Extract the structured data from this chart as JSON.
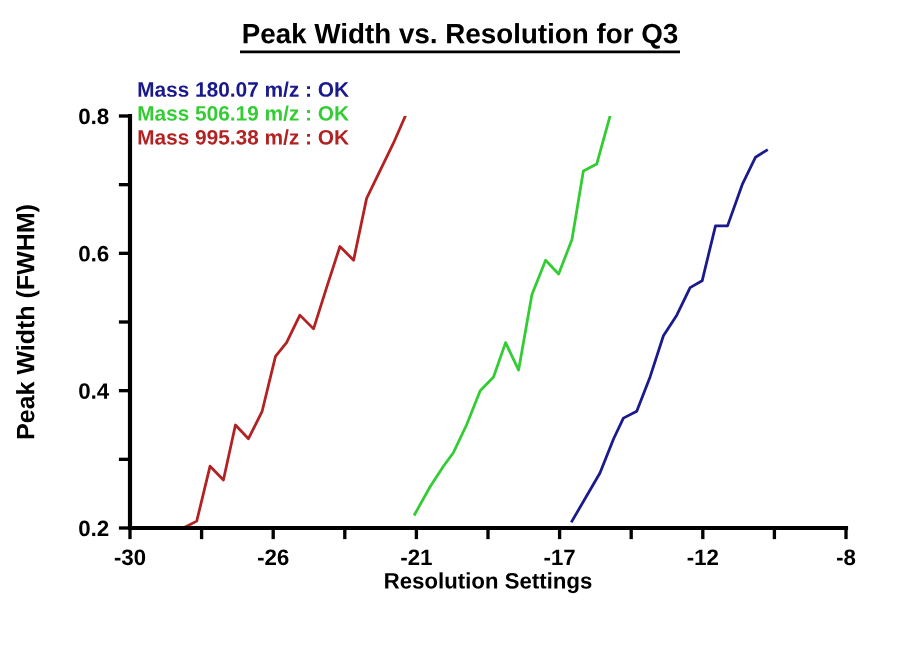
{
  "chart_data": {
    "type": "line",
    "title": "Peak Width vs. Resolution for Q3",
    "xlabel": "Resolution Settings",
    "ylabel": "Peak Width (FWHM)",
    "xlim": [
      -30,
      -8
    ],
    "xticks": [
      -30,
      {
        "value": -27.8,
        "label": null
      },
      {
        "value": -25.6,
        "label": "-26"
      },
      {
        "value": -23.4,
        "label": null
      },
      {
        "value": -21.2,
        "label": "-21"
      },
      {
        "value": -19,
        "label": null
      },
      {
        "value": -16.8,
        "label": "-17"
      },
      {
        "value": -14.6,
        "label": null
      },
      {
        "value": -12.4,
        "label": "-12"
      },
      {
        "value": -10.2,
        "label": null
      },
      -8
    ],
    "ylim": [
      0.2,
      0.8
    ],
    "yticks": [
      0.2,
      {
        "value": 0.3,
        "label": null
      },
      0.4,
      {
        "value": 0.5,
        "label": null
      },
      0.6,
      {
        "value": 0.7,
        "label": null
      },
      0.8
    ],
    "grid": false,
    "legend": "top left",
    "marker": "none",
    "line_style": "solid",
    "series": [
      {
        "name": "Mass 180.07 m/z : OK",
        "color": "#1a1a8c",
        "x": [
          -16.42,
          -15.56,
          -15.14,
          -14.84,
          -14.43,
          -14.02,
          -13.61,
          -13.2,
          -12.79,
          -12.42,
          -12.01,
          -11.64,
          -11.19,
          -10.78,
          -10.44
        ],
        "values": [
          0.21,
          0.28,
          0.33,
          0.36,
          0.37,
          0.42,
          0.48,
          0.51,
          0.55,
          0.56,
          0.64,
          0.64,
          0.7,
          0.74,
          0.75
        ]
      },
      {
        "name": "Mass 506.19 m/z : OK",
        "color": "#33cc33",
        "x": [
          -21.25,
          -20.78,
          -20.37,
          -20.06,
          -19.66,
          -19.24,
          -18.83,
          -18.46,
          -18.06,
          -17.65,
          -17.23,
          -16.83,
          -16.42,
          -16.07,
          -15.66,
          -15.25
        ],
        "values": [
          0.22,
          0.26,
          0.29,
          0.31,
          0.35,
          0.4,
          0.42,
          0.47,
          0.43,
          0.54,
          0.59,
          0.57,
          0.62,
          0.72,
          0.73,
          0.8
        ]
      },
      {
        "name": "Mass 995.38 m/z : OK",
        "color": "#b22222",
        "x": [
          -28.36,
          -27.95,
          -27.54,
          -27.13,
          -26.76,
          -26.36,
          -25.94,
          -25.53,
          -25.19,
          -24.78,
          -24.36,
          -23.96,
          -23.55,
          -23.13,
          -22.73,
          -22.32,
          -21.91,
          -21.54
        ],
        "values": [
          0.2,
          0.21,
          0.29,
          0.27,
          0.35,
          0.33,
          0.37,
          0.45,
          0.47,
          0.51,
          0.49,
          0.55,
          0.61,
          0.59,
          0.68,
          0.72,
          0.76,
          0.8
        ]
      }
    ]
  }
}
